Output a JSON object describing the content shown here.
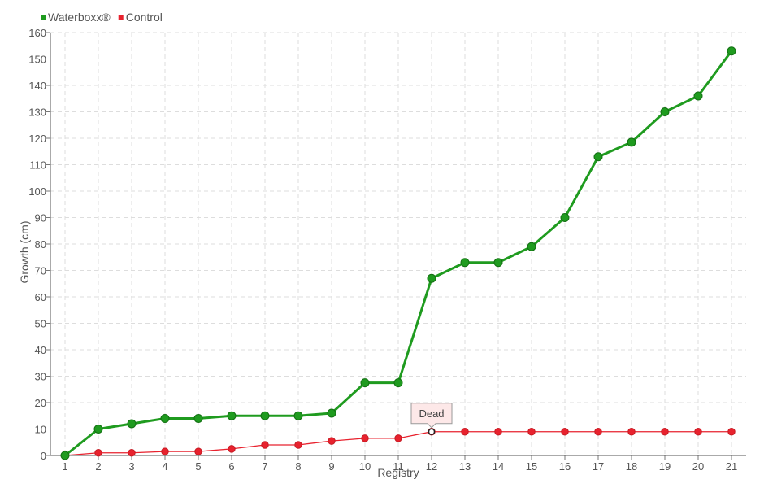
{
  "chart_data": {
    "type": "line",
    "title": "",
    "xlabel": "Registry",
    "ylabel": "Growth (cm)",
    "categories": [
      "1",
      "2",
      "3",
      "4",
      "5",
      "6",
      "7",
      "8",
      "9",
      "10",
      "11",
      "12",
      "13",
      "14",
      "15",
      "16",
      "17",
      "18",
      "19",
      "20",
      "21"
    ],
    "ylim": [
      0,
      160
    ],
    "yticks": [
      0,
      10,
      20,
      30,
      40,
      50,
      60,
      70,
      80,
      90,
      100,
      110,
      120,
      130,
      140,
      150,
      160
    ],
    "grid": true,
    "legend_position": "top-left",
    "series": [
      {
        "name": "Waterboxx®",
        "color": "#1f9b1f",
        "values": [
          0,
          10,
          12,
          14,
          14,
          15,
          15,
          15,
          16,
          27.5,
          27.5,
          67,
          73,
          73,
          79,
          90,
          113,
          118.5,
          130,
          136,
          153
        ]
      },
      {
        "name": "Control",
        "color": "#e8222e",
        "values": [
          0,
          1,
          1,
          1.5,
          1.5,
          2.5,
          4,
          4,
          5.5,
          6.5,
          6.5,
          9,
          9,
          9,
          9,
          9,
          9,
          9,
          9,
          9,
          9
        ]
      }
    ],
    "annotations": [
      {
        "text": "Dead",
        "series": 1,
        "category": "12"
      }
    ]
  }
}
